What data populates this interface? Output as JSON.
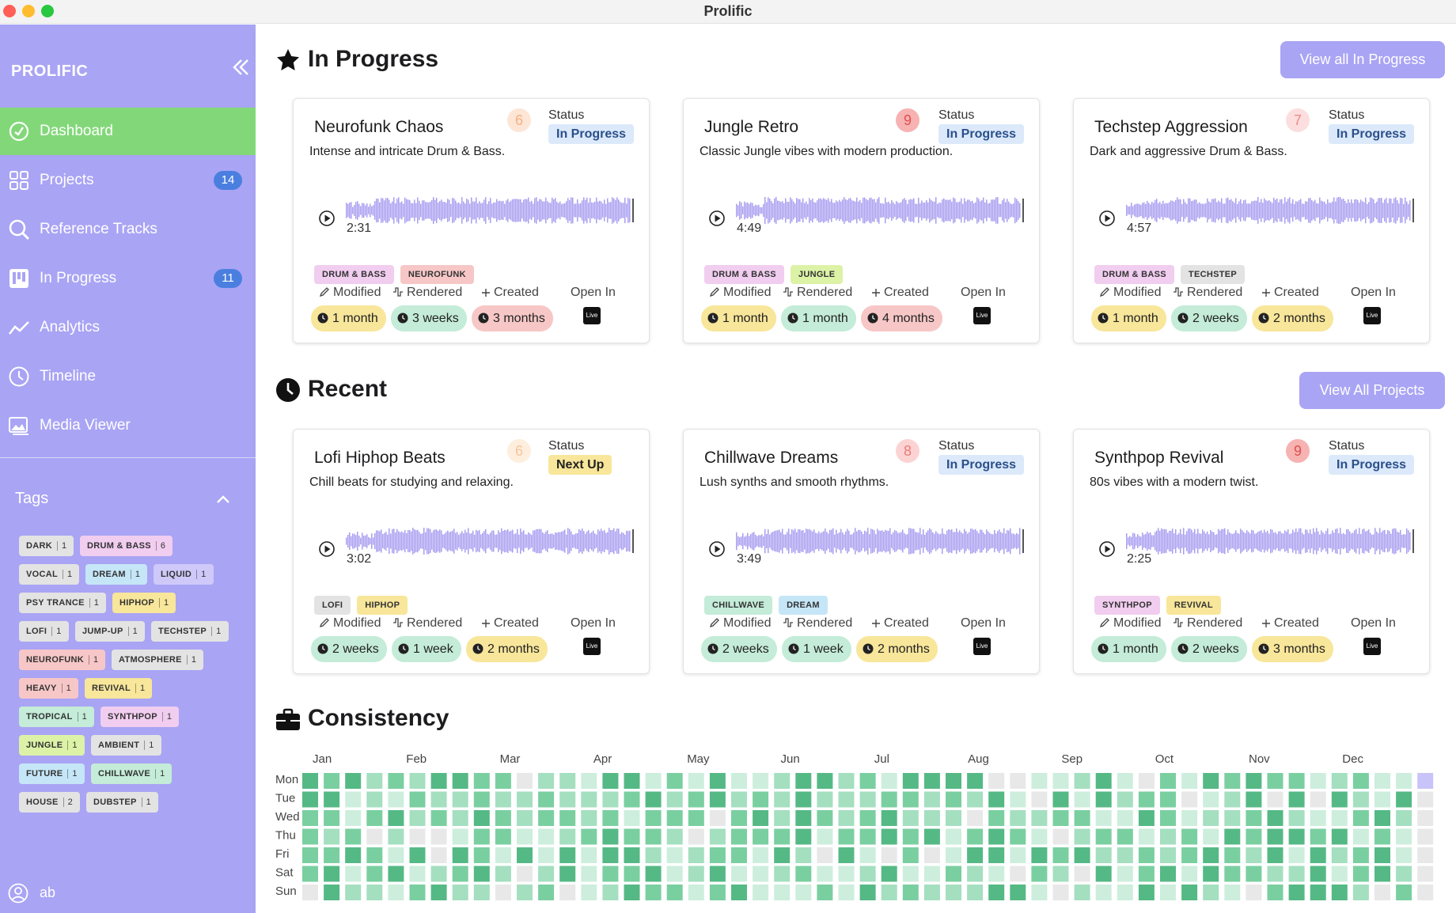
{
  "window": {
    "title": "Prolific"
  },
  "sidebar": {
    "app_name": "PROLIFIC",
    "nav": [
      {
        "label": "Dashboard",
        "icon": "dashboard-icon",
        "active": true
      },
      {
        "label": "Projects",
        "icon": "grid-icon",
        "badge": "14"
      },
      {
        "label": "Reference Tracks",
        "icon": "search-icon"
      },
      {
        "label": "In Progress",
        "icon": "kanban-icon",
        "badge": "11"
      },
      {
        "label": "Analytics",
        "icon": "chart-line-icon"
      },
      {
        "label": "Timeline",
        "icon": "clock-icon"
      },
      {
        "label": "Media Viewer",
        "icon": "image-icon"
      }
    ],
    "tags_heading": "Tags",
    "user": "ab",
    "tags": [
      {
        "name": "DARK",
        "count": "1",
        "color": "#e3e3e3"
      },
      {
        "name": "DRUM & BASS",
        "count": "6",
        "color": "#f1cdf0"
      },
      {
        "name": "VOCAL",
        "count": "1",
        "color": "#e3e3e3"
      },
      {
        "name": "DREAM",
        "count": "1",
        "color": "#c5e6f7"
      },
      {
        "name": "LIQUID",
        "count": "1",
        "color": "#cfc9fa"
      },
      {
        "name": "PSY TRANCE",
        "count": "1",
        "color": "#e3e3e3"
      },
      {
        "name": "HIPHOP",
        "count": "1",
        "color": "#f8e69a"
      },
      {
        "name": "LOFI",
        "count": "1",
        "color": "#e3e3e3"
      },
      {
        "name": "JUMP-UP",
        "count": "1",
        "color": "#e3e3e3"
      },
      {
        "name": "TECHSTEP",
        "count": "1",
        "color": "#e3e3e3"
      },
      {
        "name": "NEUROFUNK",
        "count": "1",
        "color": "#f7c7c7"
      },
      {
        "name": "ATMOSPHERE",
        "count": "1",
        "color": "#e3e3e3"
      },
      {
        "name": "HEAVY",
        "count": "1",
        "color": "#f7c7c7"
      },
      {
        "name": "REVIVAL",
        "count": "1",
        "color": "#f8e69a"
      },
      {
        "name": "TROPICAL",
        "count": "1",
        "color": "#c4ecd8"
      },
      {
        "name": "SYNTHPOP",
        "count": "1",
        "color": "#f1cdf0"
      },
      {
        "name": "JUNGLE",
        "count": "1",
        "color": "#dcf2a6"
      },
      {
        "name": "AMBIENT",
        "count": "1",
        "color": "#e3e3e3"
      },
      {
        "name": "FUTURE",
        "count": "1",
        "color": "#c5e6f7"
      },
      {
        "name": "CHILLWAVE",
        "count": "1",
        "color": "#c4ecd8"
      },
      {
        "name": "HOUSE",
        "count": "2",
        "color": "#e3e3e3"
      },
      {
        "name": "DUBSTEP",
        "count": "1",
        "color": "#e3e3e3"
      }
    ]
  },
  "labels": {
    "status": "Status",
    "modified": "Modified",
    "rendered": "Rendered",
    "created": "Created",
    "open_in": "Open In",
    "live": "Live"
  },
  "sections": {
    "in_progress": {
      "title": "In Progress",
      "button": "View all In Progress",
      "cards": [
        {
          "title": "Neurofunk Chaos",
          "rating": "6",
          "rating_color": "#fde6d6",
          "rating_text": "#f4b183",
          "status": "In Progress",
          "desc": "Intense and intricate Drum & Bass.",
          "duration": "2:31",
          "progress": 0.0,
          "tags": [
            {
              "name": "DRUM & BASS",
              "color": "#f1cdf0"
            },
            {
              "name": "NEUROFUNK",
              "color": "#f7c7c7"
            }
          ],
          "modified": {
            "value": "1 month",
            "color": "#f8e69a"
          },
          "rendered": {
            "value": "3 weeks",
            "color": "#c4ecd8"
          },
          "created": {
            "value": "3 months",
            "color": "#f7c7c7"
          }
        },
        {
          "title": "Jungle Retro",
          "rating": "9",
          "rating_color": "#f7b2b2",
          "rating_text": "#e05050",
          "status": "In Progress",
          "desc": "Classic Jungle vibes with modern production.",
          "duration": "4:49",
          "progress": 0.0,
          "tags": [
            {
              "name": "DRUM & BASS",
              "color": "#f1cdf0"
            },
            {
              "name": "JUNGLE",
              "color": "#dcf2a6"
            }
          ],
          "modified": {
            "value": "1 month",
            "color": "#f8e69a"
          },
          "rendered": {
            "value": "1 month",
            "color": "#c4ecd8"
          },
          "created": {
            "value": "4 months",
            "color": "#f7c7c7"
          }
        },
        {
          "title": "Techstep Aggression",
          "rating": "7",
          "rating_color": "#fcdede",
          "rating_text": "#f08b8b",
          "status": "In Progress",
          "desc": "Dark and aggressive Drum & Bass.",
          "duration": "4:57",
          "progress": 0.0,
          "tags": [
            {
              "name": "DRUM & BASS",
              "color": "#f1cdf0"
            },
            {
              "name": "TECHSTEP",
              "color": "#e3e3e3"
            }
          ],
          "modified": {
            "value": "1 month",
            "color": "#f8e69a"
          },
          "rendered": {
            "value": "2 weeks",
            "color": "#c4ecd8"
          },
          "created": {
            "value": "2 months",
            "color": "#f8e69a"
          }
        }
      ]
    },
    "recent": {
      "title": "Recent",
      "button": "View All Projects",
      "cards": [
        {
          "title": "Lofi Hiphop Beats",
          "rating": "6",
          "rating_color": "#fdeede",
          "rating_text": "#f6c69e",
          "status": "Next Up",
          "desc": "Chill beats for studying and relaxing.",
          "duration": "3:02",
          "progress": 0.0,
          "tags": [
            {
              "name": "LOFI",
              "color": "#e3e3e3"
            },
            {
              "name": "HIPHOP",
              "color": "#f8e69a"
            }
          ],
          "modified": {
            "value": "2 weeks",
            "color": "#c4ecd8"
          },
          "rendered": {
            "value": "1 week",
            "color": "#c4ecd8"
          },
          "created": {
            "value": "2 months",
            "color": "#f8e69a"
          }
        },
        {
          "title": "Chillwave Dreams",
          "rating": "8",
          "rating_color": "#fcd3d3",
          "rating_text": "#ec7b7b",
          "status": "In Progress",
          "desc": "Lush synths and smooth rhythms.",
          "duration": "3:49",
          "progress": 0.0,
          "tags": [
            {
              "name": "CHILLWAVE",
              "color": "#c4ecd8"
            },
            {
              "name": "DREAM",
              "color": "#c5e6f7"
            }
          ],
          "modified": {
            "value": "2 weeks",
            "color": "#c4ecd8"
          },
          "rendered": {
            "value": "1 week",
            "color": "#c4ecd8"
          },
          "created": {
            "value": "2 months",
            "color": "#f8e69a"
          }
        },
        {
          "title": "Synthpop Revival",
          "rating": "9",
          "rating_color": "#f7b2b2",
          "rating_text": "#e05050",
          "status": "In Progress",
          "desc": "80s vibes with a modern twist.",
          "duration": "2:25",
          "progress": 0.0,
          "tags": [
            {
              "name": "SYNTHPOP",
              "color": "#f1cdf0"
            },
            {
              "name": "REVIVAL",
              "color": "#f8e69a"
            }
          ],
          "modified": {
            "value": "1 month",
            "color": "#c4ecd8"
          },
          "rendered": {
            "value": "2 weeks",
            "color": "#c4ecd8"
          },
          "created": {
            "value": "3 months",
            "color": "#f8e69a"
          }
        }
      ]
    },
    "consistency": {
      "title": "Consistency",
      "months": [
        "Jan",
        "Feb",
        "Mar",
        "Apr",
        "May",
        "Jun",
        "Jul",
        "Aug",
        "Sep",
        "Oct",
        "Nov",
        "Dec"
      ],
      "days": [
        "Mon",
        "Tue",
        "Wed",
        "Thu",
        "Fri",
        "Sat",
        "Sun"
      ],
      "palette": [
        "#e8e8e8",
        "#cdeedd",
        "#a4dfc0",
        "#7acfa0",
        "#55b985"
      ],
      "current_color": "#c8c3f8",
      "weeks": 53
    }
  },
  "colors": {
    "accent": "#a9a4f4",
    "active": "#82d879",
    "badge": "#4a7fe0",
    "status_in_progress": "#dce9fa",
    "status_next_up": "#f8e69a"
  }
}
